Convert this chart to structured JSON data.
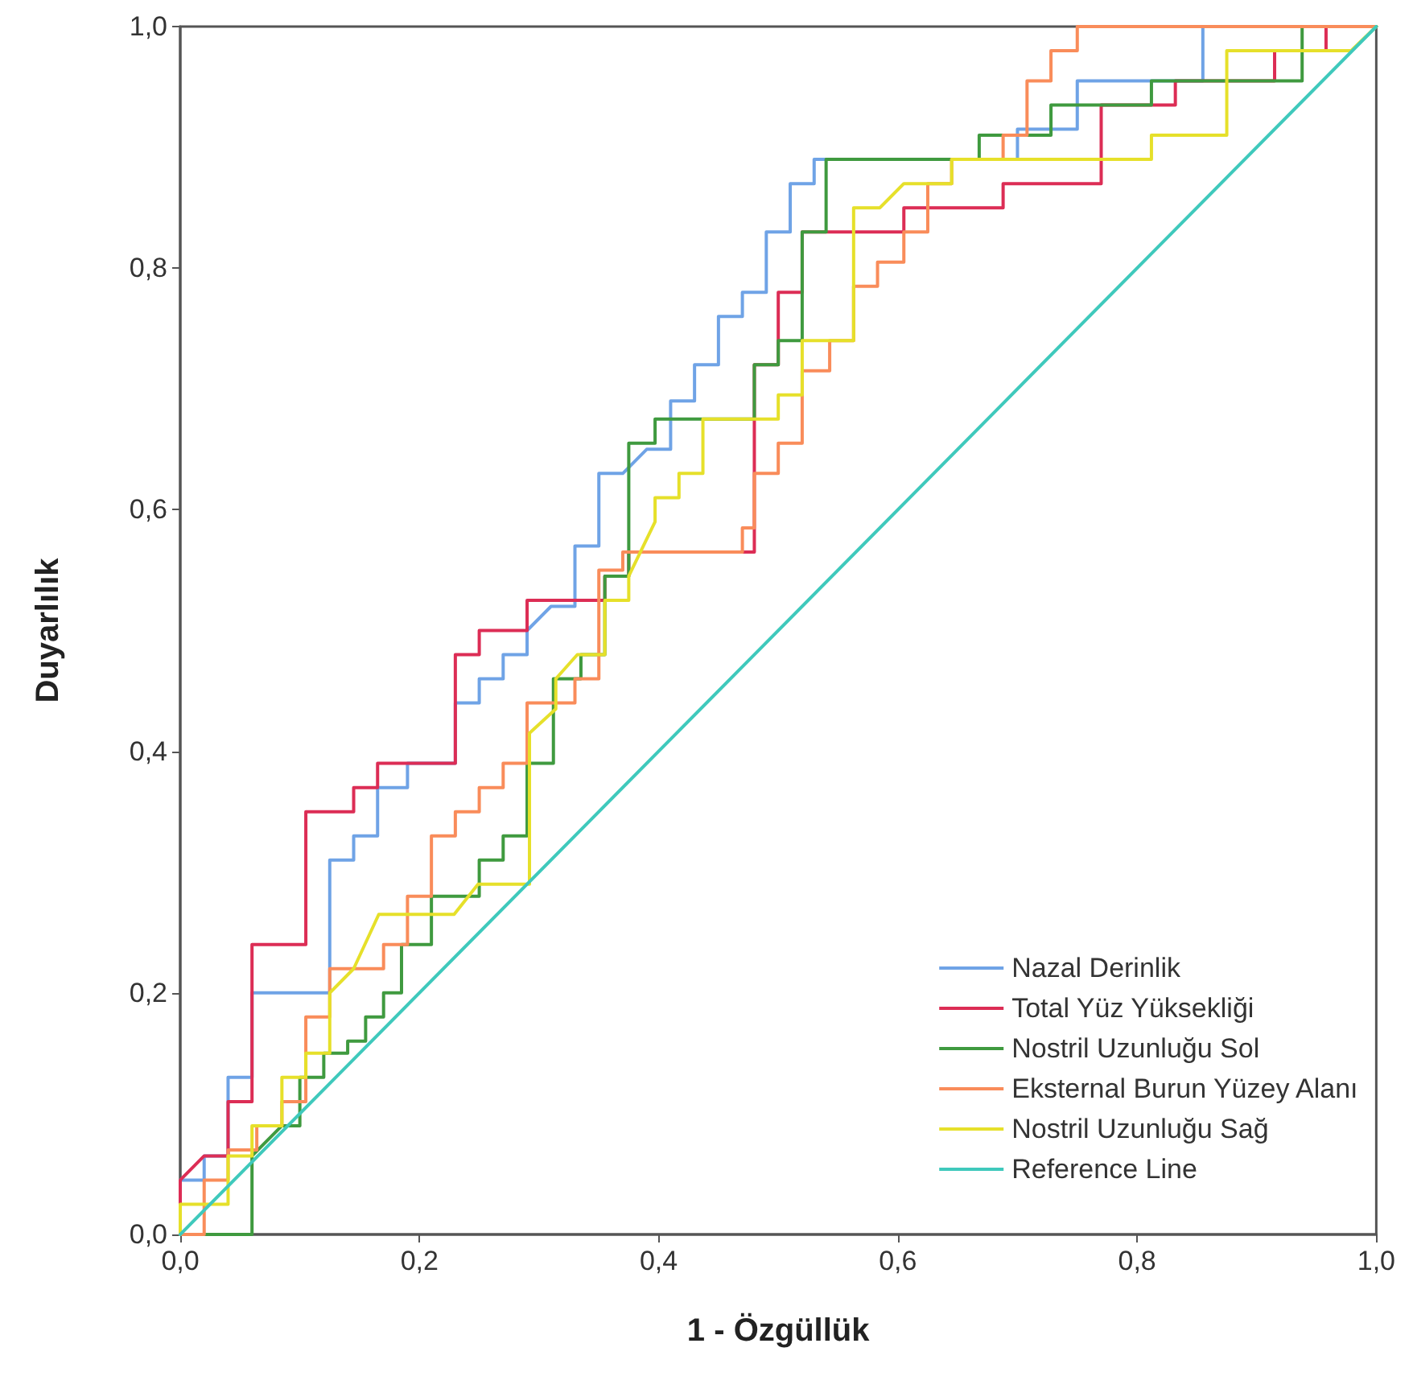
{
  "chart_data": {
    "type": "line",
    "xlabel": "1 - Özgüllük",
    "ylabel": "Duyarlılık",
    "xlim": [
      0,
      1
    ],
    "ylim": [
      0,
      1
    ],
    "xticks": [
      {
        "value": 0,
        "label": "0,0"
      },
      {
        "value": 0.2,
        "label": "0,2"
      },
      {
        "value": 0.4,
        "label": "0,4"
      },
      {
        "value": 0.6,
        "label": "0,6"
      },
      {
        "value": 0.8,
        "label": "0,8"
      },
      {
        "value": 1,
        "label": "1,0"
      }
    ],
    "yticks": [
      {
        "value": 0,
        "label": "0,0"
      },
      {
        "value": 0.2,
        "label": "0,2"
      },
      {
        "value": 0.4,
        "label": "0,4"
      },
      {
        "value": 0.6,
        "label": "0,6"
      },
      {
        "value": 0.8,
        "label": "0,8"
      },
      {
        "value": 1,
        "label": "1,0"
      }
    ],
    "legend": "bottom right",
    "marker": "none",
    "line_style": "solid",
    "series": [
      {
        "name": "Nazal Derinlik",
        "color": "#6fa3e6",
        "x": [
          0,
          0,
          0.02,
          0.02,
          0.04,
          0.04,
          0.06,
          0.06,
          0.125,
          0.125,
          0.145,
          0.145,
          0.165,
          0.165,
          0.19,
          0.19,
          0.23,
          0.23,
          0.25,
          0.25,
          0.27,
          0.27,
          0.29,
          0.29,
          0.31,
          0.33,
          0.33,
          0.35,
          0.35,
          0.37,
          0.39,
          0.41,
          0.41,
          0.43,
          0.43,
          0.45,
          0.45,
          0.47,
          0.47,
          0.49,
          0.49,
          0.51,
          0.51,
          0.53,
          0.53,
          0.7,
          0.7,
          0.75,
          0.75,
          0.855,
          0.855,
          1
        ],
        "values": [
          0,
          0.045,
          0.045,
          0.065,
          0.065,
          0.13,
          0.13,
          0.2,
          0.2,
          0.31,
          0.31,
          0.33,
          0.33,
          0.37,
          0.37,
          0.39,
          0.39,
          0.44,
          0.44,
          0.46,
          0.46,
          0.48,
          0.48,
          0.5,
          0.52,
          0.52,
          0.57,
          0.57,
          0.63,
          0.63,
          0.65,
          0.65,
          0.69,
          0.69,
          0.72,
          0.72,
          0.76,
          0.76,
          0.78,
          0.78,
          0.83,
          0.83,
          0.87,
          0.87,
          0.89,
          0.89,
          0.915,
          0.915,
          0.955,
          0.955,
          1,
          1
        ]
      },
      {
        "name": "Total Yüz Yüksekliği",
        "color": "#dc2d55",
        "x": [
          0,
          0,
          0.02,
          0.04,
          0.04,
          0.06,
          0.06,
          0.105,
          0.105,
          0.145,
          0.145,
          0.165,
          0.165,
          0.23,
          0.23,
          0.25,
          0.25,
          0.29,
          0.29,
          0.355,
          0.355,
          0.375,
          0.375,
          0.48,
          0.48,
          0.5,
          0.5,
          0.52,
          0.52,
          0.605,
          0.605,
          0.688,
          0.688,
          0.77,
          0.77,
          0.832,
          0.832,
          0.915,
          0.915,
          0.958,
          0.958,
          1
        ],
        "values": [
          0,
          0.045,
          0.065,
          0.065,
          0.11,
          0.11,
          0.24,
          0.24,
          0.35,
          0.35,
          0.37,
          0.37,
          0.39,
          0.39,
          0.48,
          0.48,
          0.5,
          0.5,
          0.525,
          0.525,
          0.545,
          0.545,
          0.565,
          0.565,
          0.72,
          0.72,
          0.78,
          0.78,
          0.83,
          0.83,
          0.85,
          0.85,
          0.87,
          0.87,
          0.935,
          0.935,
          0.955,
          0.955,
          0.98,
          0.98,
          1,
          1
        ]
      },
      {
        "name": "Nostril Uzunluğu Sol",
        "color": "#3f9a3f",
        "x": [
          0,
          0.06,
          0.06,
          0.085,
          0.1,
          0.1,
          0.12,
          0.12,
          0.14,
          0.14,
          0.155,
          0.155,
          0.17,
          0.17,
          0.185,
          0.185,
          0.21,
          0.21,
          0.25,
          0.25,
          0.27,
          0.27,
          0.29,
          0.29,
          0.312,
          0.312,
          0.335,
          0.335,
          0.355,
          0.355,
          0.375,
          0.375,
          0.397,
          0.397,
          0.48,
          0.48,
          0.5,
          0.5,
          0.52,
          0.52,
          0.54,
          0.54,
          0.668,
          0.668,
          0.728,
          0.728,
          0.812,
          0.812,
          0.938,
          0.938,
          1
        ],
        "values": [
          0,
          0,
          0.065,
          0.09,
          0.09,
          0.13,
          0.13,
          0.15,
          0.15,
          0.16,
          0.16,
          0.18,
          0.18,
          0.2,
          0.2,
          0.24,
          0.24,
          0.28,
          0.28,
          0.31,
          0.31,
          0.33,
          0.33,
          0.39,
          0.39,
          0.46,
          0.46,
          0.48,
          0.48,
          0.545,
          0.545,
          0.655,
          0.655,
          0.675,
          0.675,
          0.72,
          0.72,
          0.74,
          0.74,
          0.83,
          0.83,
          0.89,
          0.89,
          0.91,
          0.91,
          0.935,
          0.935,
          0.955,
          0.955,
          1,
          1
        ]
      },
      {
        "name": "Eksternal Burun Yüzey Alanı",
        "color": "#f98c5a",
        "x": [
          0,
          0.02,
          0.02,
          0.04,
          0.04,
          0.064,
          0.064,
          0.085,
          0.085,
          0.105,
          0.105,
          0.125,
          0.125,
          0.17,
          0.17,
          0.19,
          0.19,
          0.21,
          0.21,
          0.23,
          0.23,
          0.25,
          0.25,
          0.27,
          0.27,
          0.29,
          0.29,
          0.33,
          0.33,
          0.35,
          0.35,
          0.37,
          0.37,
          0.47,
          0.47,
          0.48,
          0.48,
          0.5,
          0.5,
          0.52,
          0.52,
          0.543,
          0.543,
          0.563,
          0.563,
          0.583,
          0.583,
          0.605,
          0.605,
          0.625,
          0.625,
          0.645,
          0.645,
          0.688,
          0.688,
          0.708,
          0.708,
          0.728,
          0.728,
          0.75,
          0.75,
          1
        ],
        "values": [
          0,
          0,
          0.045,
          0.045,
          0.07,
          0.07,
          0.09,
          0.09,
          0.11,
          0.11,
          0.18,
          0.18,
          0.22,
          0.22,
          0.24,
          0.24,
          0.28,
          0.28,
          0.33,
          0.33,
          0.35,
          0.35,
          0.37,
          0.37,
          0.39,
          0.39,
          0.44,
          0.44,
          0.46,
          0.46,
          0.55,
          0.55,
          0.565,
          0.565,
          0.585,
          0.585,
          0.63,
          0.63,
          0.655,
          0.655,
          0.715,
          0.715,
          0.74,
          0.74,
          0.785,
          0.785,
          0.805,
          0.805,
          0.83,
          0.83,
          0.87,
          0.87,
          0.89,
          0.89,
          0.91,
          0.91,
          0.955,
          0.955,
          0.98,
          0.98,
          1,
          1
        ]
      },
      {
        "name": "Nostril Uzunluğu Sağ",
        "color": "#e6e02a",
        "x": [
          0,
          0,
          0.04,
          0.04,
          0.06,
          0.06,
          0.085,
          0.085,
          0.105,
          0.105,
          0.125,
          0.125,
          0.145,
          0.166,
          0.229,
          0.249,
          0.292,
          0.292,
          0.314,
          0.314,
          0.332,
          0.335,
          0.355,
          0.355,
          0.375,
          0.375,
          0.397,
          0.397,
          0.417,
          0.417,
          0.437,
          0.437,
          0.5,
          0.5,
          0.52,
          0.52,
          0.563,
          0.563,
          0.585,
          0.605,
          0.645,
          0.645,
          0.812,
          0.812,
          0.875,
          0.875,
          0.979,
          1
        ],
        "values": [
          0,
          0.025,
          0.025,
          0.065,
          0.065,
          0.09,
          0.09,
          0.13,
          0.13,
          0.15,
          0.15,
          0.2,
          0.22,
          0.265,
          0.265,
          0.29,
          0.29,
          0.415,
          0.435,
          0.46,
          0.48,
          0.48,
          0.48,
          0.525,
          0.525,
          0.545,
          0.59,
          0.61,
          0.61,
          0.63,
          0.63,
          0.675,
          0.675,
          0.695,
          0.695,
          0.74,
          0.74,
          0.85,
          0.85,
          0.87,
          0.87,
          0.89,
          0.89,
          0.91,
          0.91,
          0.98,
          0.98,
          1
        ]
      },
      {
        "name": "Reference Line",
        "color": "#3fc9bc",
        "x": [
          0,
          1
        ],
        "values": [
          0,
          1
        ]
      }
    ]
  }
}
